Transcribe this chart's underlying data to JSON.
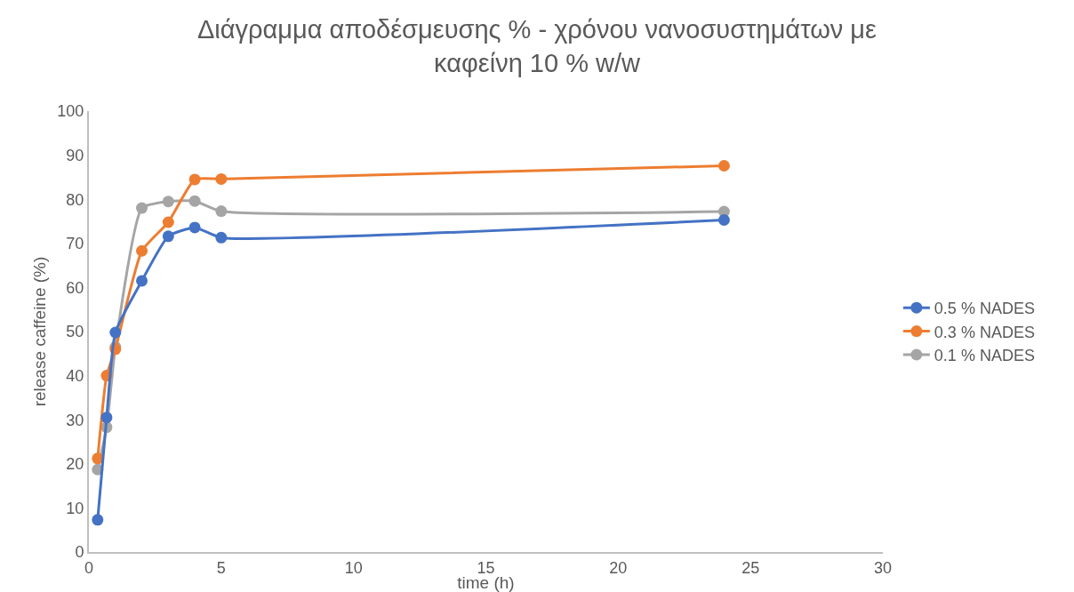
{
  "chart_data": {
    "type": "line",
    "title": "Διάγραμμα αποδέσμευσης % - χρόνου νανοσυστημάτων με καφείνη 10 % w/w",
    "xlabel": "time (h)",
    "ylabel": "release caffeine (%)",
    "x": [
      0.33,
      0.67,
      1,
      2,
      3,
      4,
      5,
      24
    ],
    "series": [
      {
        "name": "0.5 % NADES",
        "color": "#4472c4",
        "values": [
          7.3,
          30.5,
          49.8,
          61.5,
          71.6,
          73.6,
          71.3,
          75.3
        ]
      },
      {
        "name": "0.3 % NADES",
        "color": "#ed7d31",
        "values": [
          21.2,
          40,
          46,
          68.3,
          74.8,
          84.5,
          84.6,
          87.6
        ]
      },
      {
        "name": "0.1 % NADES",
        "color": "#a5a5a5",
        "values": [
          18.7,
          28.3,
          46.5,
          78,
          79.5,
          79.6,
          77.3,
          77.2
        ]
      }
    ],
    "xlim": [
      0,
      30
    ],
    "xticks": [
      0,
      5,
      10,
      15,
      20,
      25,
      30
    ],
    "ylim": [
      0,
      100
    ],
    "yticks": [
      0,
      10,
      20,
      30,
      40,
      50,
      60,
      70,
      80,
      90,
      100
    ],
    "grid": false,
    "legend": "right",
    "marker": "circle",
    "line_style": "solid"
  }
}
